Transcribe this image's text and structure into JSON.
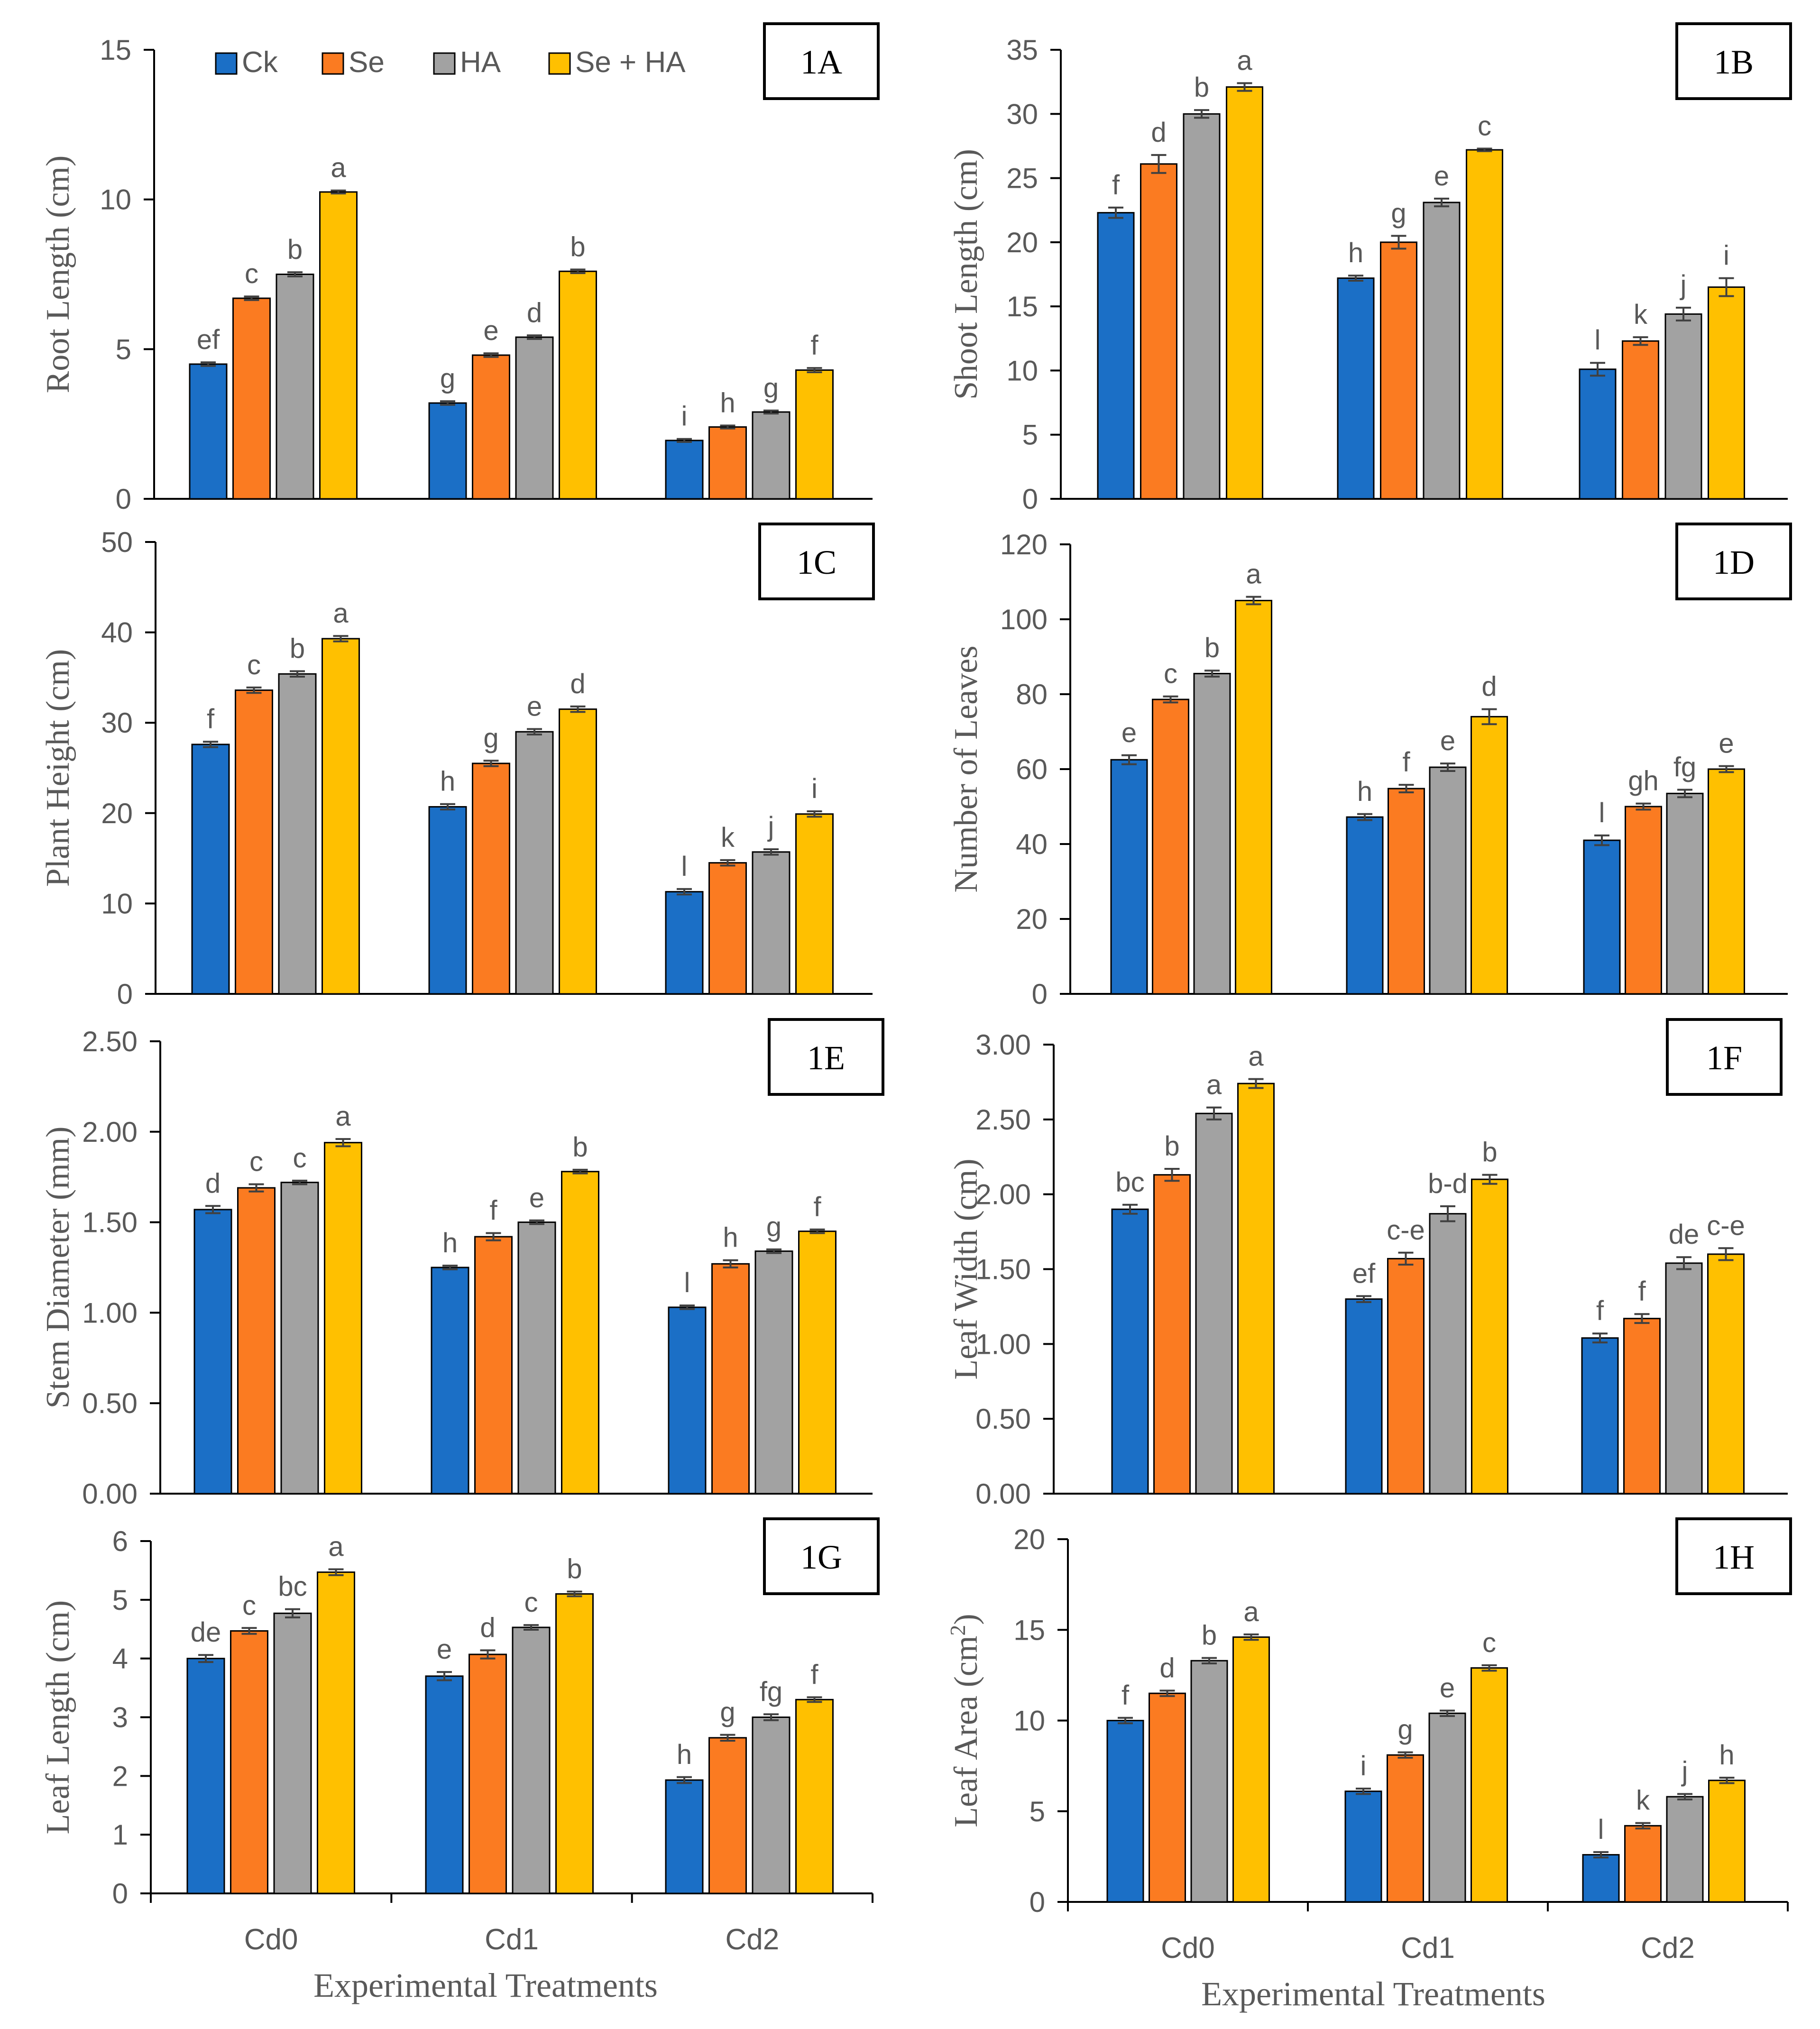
{
  "colors": {
    "series": [
      "#1b6fc6",
      "#fb7b21",
      "#a2a2a2",
      "#ffc000"
    ],
    "axis": "#000000",
    "tick_text": "#595959",
    "letter_text": "#595959",
    "error_bar": "#404040",
    "bar_outline": "#000000"
  },
  "legend": {
    "labels": [
      "Ck",
      "Se",
      "HA",
      "Se + HA"
    ],
    "placement": "top-left of panel 1A"
  },
  "x_axis": {
    "title": "Experimental Treatments",
    "categories": [
      "Cd0",
      "Cd1",
      "Cd2"
    ]
  },
  "chart_data": [
    {
      "type": "bar",
      "panel": "1A",
      "ylabel": "Root Length (cm)",
      "ylim": [
        0,
        15
      ],
      "yticks": [
        "0",
        "5",
        "10",
        "15"
      ],
      "categories": [
        "Cd0",
        "Cd1",
        "Cd2"
      ],
      "series": [
        {
          "name": "Ck",
          "values": [
            4.5,
            3.2,
            1.95
          ],
          "errors": [
            0.06,
            0.06,
            0.05
          ],
          "letters": [
            "ef",
            "g",
            "i"
          ]
        },
        {
          "name": "Se",
          "values": [
            6.7,
            4.8,
            2.4
          ],
          "errors": [
            0.06,
            0.06,
            0.05
          ],
          "letters": [
            "c",
            "e",
            "h"
          ]
        },
        {
          "name": "HA",
          "values": [
            7.5,
            5.4,
            2.9
          ],
          "errors": [
            0.07,
            0.06,
            0.05
          ],
          "letters": [
            "b",
            "d",
            "g"
          ]
        },
        {
          "name": "Se + HA",
          "values": [
            10.25,
            7.6,
            4.3
          ],
          "errors": [
            0.05,
            0.06,
            0.07
          ],
          "letters": [
            "a",
            "b",
            "f"
          ]
        }
      ]
    },
    {
      "type": "bar",
      "panel": "1B",
      "ylabel": "Shoot Length (cm)",
      "ylim": [
        0,
        35
      ],
      "yticks": [
        "0",
        "5",
        "10",
        "15",
        "20",
        "25",
        "30",
        "35"
      ],
      "categories": [
        "Cd0",
        "Cd1",
        "Cd2"
      ],
      "series": [
        {
          "name": "Ck",
          "values": [
            22.3,
            17.2,
            10.1
          ],
          "errors": [
            0.4,
            0.2,
            0.5
          ],
          "letters": [
            "f",
            "h",
            "l"
          ]
        },
        {
          "name": "Se",
          "values": [
            26.1,
            20.0,
            12.3
          ],
          "errors": [
            0.7,
            0.5,
            0.3
          ],
          "letters": [
            "d",
            "g",
            "k"
          ]
        },
        {
          "name": "HA",
          "values": [
            30.0,
            23.1,
            14.4
          ],
          "errors": [
            0.3,
            0.3,
            0.5
          ],
          "letters": [
            "b",
            "e",
            "j"
          ]
        },
        {
          "name": "Se + HA",
          "values": [
            32.1,
            27.2,
            16.5
          ],
          "errors": [
            0.3,
            0.1,
            0.7
          ],
          "letters": [
            "a",
            "c",
            "i"
          ]
        }
      ]
    },
    {
      "type": "bar",
      "panel": "1C",
      "ylabel": "Plant Height (cm)",
      "ylim": [
        0,
        50
      ],
      "yticks": [
        "0",
        "10",
        "20",
        "30",
        "40",
        "50"
      ],
      "categories": [
        "Cd0",
        "Cd1",
        "Cd2"
      ],
      "series": [
        {
          "name": "Ck",
          "values": [
            27.6,
            20.7,
            11.3
          ],
          "errors": [
            0.3,
            0.3,
            0.3
          ],
          "letters": [
            "f",
            "h",
            "l"
          ]
        },
        {
          "name": "Se",
          "values": [
            33.6,
            25.5,
            14.5
          ],
          "errors": [
            0.3,
            0.3,
            0.3
          ],
          "letters": [
            "c",
            "g",
            "k"
          ]
        },
        {
          "name": "HA",
          "values": [
            35.4,
            29.0,
            15.7
          ],
          "errors": [
            0.3,
            0.3,
            0.3
          ],
          "letters": [
            "b",
            "e",
            "j"
          ]
        },
        {
          "name": "Se + HA",
          "values": [
            39.3,
            31.5,
            19.9
          ],
          "errors": [
            0.3,
            0.3,
            0.3
          ],
          "letters": [
            "a",
            "d",
            "i"
          ]
        }
      ]
    },
    {
      "type": "bar",
      "panel": "1D",
      "ylabel": "Number of Leaves",
      "ylim": [
        0,
        120
      ],
      "yticks": [
        "0",
        "20",
        "40",
        "60",
        "80",
        "100",
        "120"
      ],
      "categories": [
        "Cd0",
        "Cd1",
        "Cd2"
      ],
      "series": [
        {
          "name": "Ck",
          "values": [
            62.5,
            47.2,
            41.0
          ],
          "errors": [
            1.2,
            0.8,
            1.3
          ],
          "letters": [
            "e",
            "h",
            "l"
          ]
        },
        {
          "name": "Se",
          "values": [
            78.6,
            54.8,
            50.0
          ],
          "errors": [
            0.8,
            1.0,
            0.8
          ],
          "letters": [
            "c",
            "f",
            "gh"
          ]
        },
        {
          "name": "HA",
          "values": [
            85.5,
            60.5,
            53.5
          ],
          "errors": [
            0.8,
            1.0,
            1.0
          ],
          "letters": [
            "b",
            "e",
            "fg"
          ]
        },
        {
          "name": "Se + HA",
          "values": [
            105.0,
            74.0,
            60.0
          ],
          "errors": [
            1.0,
            2.0,
            0.8
          ],
          "letters": [
            "a",
            "d",
            "e"
          ]
        }
      ]
    },
    {
      "type": "bar",
      "panel": "1E",
      "ylabel": "Stem Diameter (mm)",
      "ylim": [
        0,
        2.5
      ],
      "yticks": [
        "0.00",
        "0.50",
        "1.00",
        "1.50",
        "2.00",
        "2.50"
      ],
      "categories": [
        "Cd0",
        "Cd1",
        "Cd2"
      ],
      "series": [
        {
          "name": "Ck",
          "values": [
            1.57,
            1.25,
            1.03
          ],
          "errors": [
            0.02,
            0.01,
            0.01
          ],
          "letters": [
            "d",
            "h",
            "l"
          ]
        },
        {
          "name": "Se",
          "values": [
            1.69,
            1.42,
            1.27
          ],
          "errors": [
            0.02,
            0.02,
            0.02
          ],
          "letters": [
            "c",
            "f",
            "h"
          ]
        },
        {
          "name": "HA",
          "values": [
            1.72,
            1.5,
            1.34
          ],
          "errors": [
            0.01,
            0.01,
            0.01
          ],
          "letters": [
            "c",
            "e",
            "g"
          ]
        },
        {
          "name": "Se + HA",
          "values": [
            1.94,
            1.78,
            1.45
          ],
          "errors": [
            0.02,
            0.01,
            0.01
          ],
          "letters": [
            "a",
            "b",
            "f"
          ]
        }
      ]
    },
    {
      "type": "bar",
      "panel": "1F",
      "ylabel": "Leaf Width (cm)",
      "ylim": [
        0,
        3
      ],
      "yticks": [
        "0.00",
        "0.50",
        "1.00",
        "1.50",
        "2.00",
        "2.50",
        "3.00"
      ],
      "categories": [
        "Cd0",
        "Cd1",
        "Cd2"
      ],
      "series": [
        {
          "name": "Ck",
          "values": [
            1.9,
            1.3,
            1.04
          ],
          "errors": [
            0.03,
            0.02,
            0.03
          ],
          "letters": [
            "bc",
            "ef",
            "f"
          ]
        },
        {
          "name": "Se",
          "values": [
            2.13,
            1.57,
            1.17
          ],
          "errors": [
            0.04,
            0.04,
            0.03
          ],
          "letters": [
            "b",
            "c-e",
            "f"
          ]
        },
        {
          "name": "HA",
          "values": [
            2.54,
            1.87,
            1.54
          ],
          "errors": [
            0.04,
            0.05,
            0.04
          ],
          "letters": [
            "a",
            "b-d",
            "de"
          ]
        },
        {
          "name": "Se + HA",
          "values": [
            2.74,
            2.1,
            1.6
          ],
          "errors": [
            0.03,
            0.03,
            0.04
          ],
          "letters": [
            "a",
            "b",
            "c-e"
          ]
        }
      ]
    },
    {
      "type": "bar",
      "panel": "1G",
      "ylabel": "Leaf  Length (cm)",
      "ylim": [
        0,
        6
      ],
      "yticks": [
        "0",
        "1",
        "2",
        "3",
        "4",
        "5",
        "6"
      ],
      "categories": [
        "Cd0",
        "Cd1",
        "Cd2"
      ],
      "series": [
        {
          "name": "Ck",
          "values": [
            4.0,
            3.7,
            1.93
          ],
          "errors": [
            0.06,
            0.07,
            0.05
          ],
          "letters": [
            "de",
            "e",
            "h"
          ]
        },
        {
          "name": "Se",
          "values": [
            4.47,
            4.07,
            2.65
          ],
          "errors": [
            0.05,
            0.07,
            0.05
          ],
          "letters": [
            "c",
            "d",
            "g"
          ]
        },
        {
          "name": "HA",
          "values": [
            4.77,
            4.53,
            3.0
          ],
          "errors": [
            0.07,
            0.04,
            0.05
          ],
          "letters": [
            "bc",
            "c",
            "fg"
          ]
        },
        {
          "name": "Se + HA",
          "values": [
            5.47,
            5.1,
            3.3
          ],
          "errors": [
            0.05,
            0.04,
            0.04
          ],
          "letters": [
            "a",
            "b",
            "f"
          ]
        }
      ]
    },
    {
      "type": "bar",
      "panel": "1H",
      "ylabel": "Leaf Area (cm2)",
      "ylim": [
        0,
        20
      ],
      "yticks": [
        "0",
        "5",
        "10",
        "15",
        "20"
      ],
      "categories": [
        "Cd0",
        "Cd1",
        "Cd2"
      ],
      "series": [
        {
          "name": "Ck",
          "values": [
            10.0,
            6.1,
            2.6
          ],
          "errors": [
            0.15,
            0.15,
            0.15
          ],
          "letters": [
            "f",
            "i",
            "l"
          ]
        },
        {
          "name": "Se",
          "values": [
            11.5,
            8.1,
            4.2
          ],
          "errors": [
            0.15,
            0.15,
            0.15
          ],
          "letters": [
            "d",
            "g",
            "k"
          ]
        },
        {
          "name": "HA",
          "values": [
            13.3,
            10.4,
            5.8
          ],
          "errors": [
            0.15,
            0.15,
            0.15
          ],
          "letters": [
            "b",
            "e",
            "j"
          ]
        },
        {
          "name": "Se + HA",
          "values": [
            14.6,
            12.9,
            6.7
          ],
          "errors": [
            0.15,
            0.15,
            0.15
          ],
          "letters": [
            "a",
            "c",
            "h"
          ]
        }
      ]
    }
  ]
}
